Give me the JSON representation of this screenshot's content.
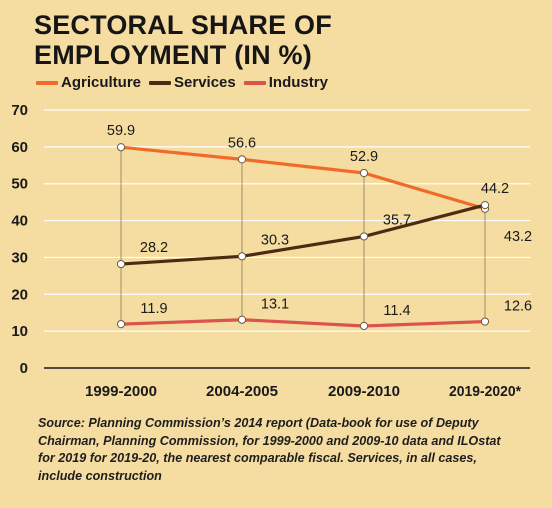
{
  "title_line1": "SECTORAL SHARE OF",
  "title_line2": "EMPLOYMENT (IN %)",
  "source_text": "Source: Planning Commission’s 2014 report (Data-book for use of Deputy Chairman, Planning Commission, for 1999-2000 and 2009-10 data and ILOstat for 2019 for 2019-20, the nearest comparable fiscal. Services, in all cases, include construction",
  "chart_data": {
    "type": "line",
    "title": "SECTORAL SHARE OF EMPLOYMENT (IN %)",
    "categories": [
      "1999-2000",
      "2004-2005",
      "2009-2010",
      "2019-2020*"
    ],
    "ylim": [
      0,
      70
    ],
    "yticks": [
      0,
      10,
      20,
      30,
      40,
      50,
      60,
      70
    ],
    "legend_position": "top-left",
    "series": [
      {
        "name": "Agriculture",
        "color": "#f26a2a",
        "values": [
          59.9,
          56.6,
          52.9,
          43.2
        ],
        "labels": [
          "59.9",
          "56.6",
          "52.9",
          "43.2"
        ]
      },
      {
        "name": "Services",
        "color": "#4a2c12",
        "values": [
          28.2,
          30.3,
          35.7,
          44.2
        ],
        "labels": [
          "28.2",
          "30.3",
          "35.7",
          "44.2"
        ]
      },
      {
        "name": "Industry",
        "color": "#d9534f",
        "values": [
          11.9,
          13.1,
          11.4,
          12.6
        ],
        "labels": [
          "11.9",
          "13.1",
          "11.4",
          "12.6"
        ]
      }
    ]
  }
}
